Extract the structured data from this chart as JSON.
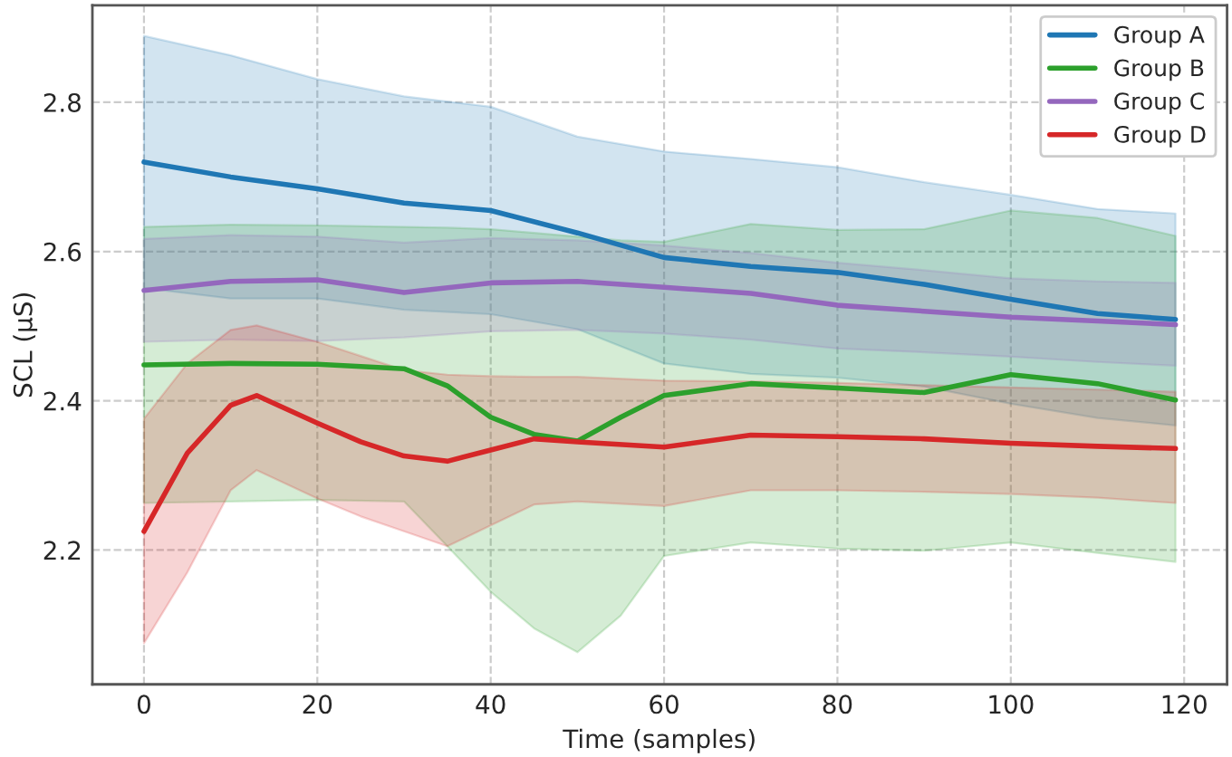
{
  "chart_data": {
    "type": "line",
    "xlabel": "Time (samples)",
    "ylabel": "SCL (µS)",
    "xlim": [
      -5.95,
      124.95
    ],
    "xticks": [
      0,
      20,
      40,
      60,
      80,
      100,
      120
    ],
    "ylim": [
      2.02,
      2.93
    ],
    "yticks": [
      2.2,
      2.4,
      2.6,
      2.8
    ],
    "grid": true,
    "legend": "top right",
    "line_style": "solid",
    "marker": "none",
    "series": [
      {
        "name": "Group A",
        "color": "#1f77b4",
        "x": [
          0,
          10,
          20,
          30,
          40,
          50,
          60,
          70,
          80,
          90,
          100,
          110,
          119
        ],
        "values": [
          2.72,
          2.7,
          2.684,
          2.665,
          2.655,
          2.625,
          2.592,
          2.58,
          2.572,
          2.556,
          2.536,
          2.517,
          2.509
        ],
        "upper": [
          2.889,
          2.863,
          2.831,
          2.808,
          2.794,
          2.754,
          2.734,
          2.724,
          2.713,
          2.693,
          2.676,
          2.657,
          2.651
        ],
        "lower": [
          2.551,
          2.537,
          2.537,
          2.522,
          2.516,
          2.496,
          2.45,
          2.436,
          2.431,
          2.419,
          2.396,
          2.377,
          2.367
        ]
      },
      {
        "name": "Group B",
        "color": "#2ca02c",
        "x": [
          0,
          10,
          20,
          30,
          35,
          40,
          45,
          50,
          55,
          60,
          70,
          80,
          90,
          100,
          110,
          119
        ],
        "values": [
          2.448,
          2.45,
          2.449,
          2.443,
          2.42,
          2.378,
          2.355,
          2.346,
          2.378,
          2.407,
          2.423,
          2.417,
          2.411,
          2.435,
          2.423,
          2.401
        ],
        "upper": [
          2.633,
          2.636,
          2.635,
          2.633,
          2.632,
          2.63,
          2.625,
          2.62,
          2.615,
          2.613,
          2.637,
          2.629,
          2.63,
          2.655,
          2.645,
          2.621
        ],
        "lower": [
          2.263,
          2.265,
          2.267,
          2.265,
          2.205,
          2.144,
          2.095,
          2.063,
          2.112,
          2.192,
          2.21,
          2.202,
          2.199,
          2.21,
          2.196,
          2.184
        ]
      },
      {
        "name": "Group C",
        "color": "#9467bd",
        "x": [
          0,
          10,
          20,
          30,
          40,
          50,
          60,
          70,
          80,
          90,
          100,
          110,
          119
        ],
        "values": [
          2.548,
          2.56,
          2.562,
          2.545,
          2.558,
          2.56,
          2.552,
          2.544,
          2.528,
          2.52,
          2.512,
          2.507,
          2.502
        ],
        "upper": [
          2.617,
          2.622,
          2.62,
          2.612,
          2.618,
          2.615,
          2.608,
          2.598,
          2.585,
          2.575,
          2.564,
          2.56,
          2.558
        ],
        "lower": [
          2.479,
          2.482,
          2.48,
          2.485,
          2.493,
          2.495,
          2.49,
          2.482,
          2.47,
          2.465,
          2.459,
          2.452,
          2.447
        ]
      },
      {
        "name": "Group D",
        "color": "#d62728",
        "x": [
          0,
          5,
          10,
          13,
          20,
          25,
          30,
          35,
          40,
          45,
          50,
          60,
          70,
          80,
          90,
          100,
          110,
          119
        ],
        "values": [
          2.225,
          2.33,
          2.394,
          2.407,
          2.37,
          2.345,
          2.326,
          2.319,
          2.334,
          2.349,
          2.345,
          2.338,
          2.354,
          2.352,
          2.349,
          2.343,
          2.339,
          2.336
        ],
        "upper": [
          2.376,
          2.45,
          2.495,
          2.501,
          2.479,
          2.46,
          2.441,
          2.435,
          2.433,
          2.432,
          2.432,
          2.427,
          2.426,
          2.424,
          2.421,
          2.418,
          2.415,
          2.412
        ],
        "lower": [
          2.075,
          2.17,
          2.28,
          2.307,
          2.269,
          2.245,
          2.225,
          2.205,
          2.233,
          2.261,
          2.265,
          2.259,
          2.28,
          2.28,
          2.278,
          2.275,
          2.27,
          2.263
        ]
      }
    ]
  }
}
